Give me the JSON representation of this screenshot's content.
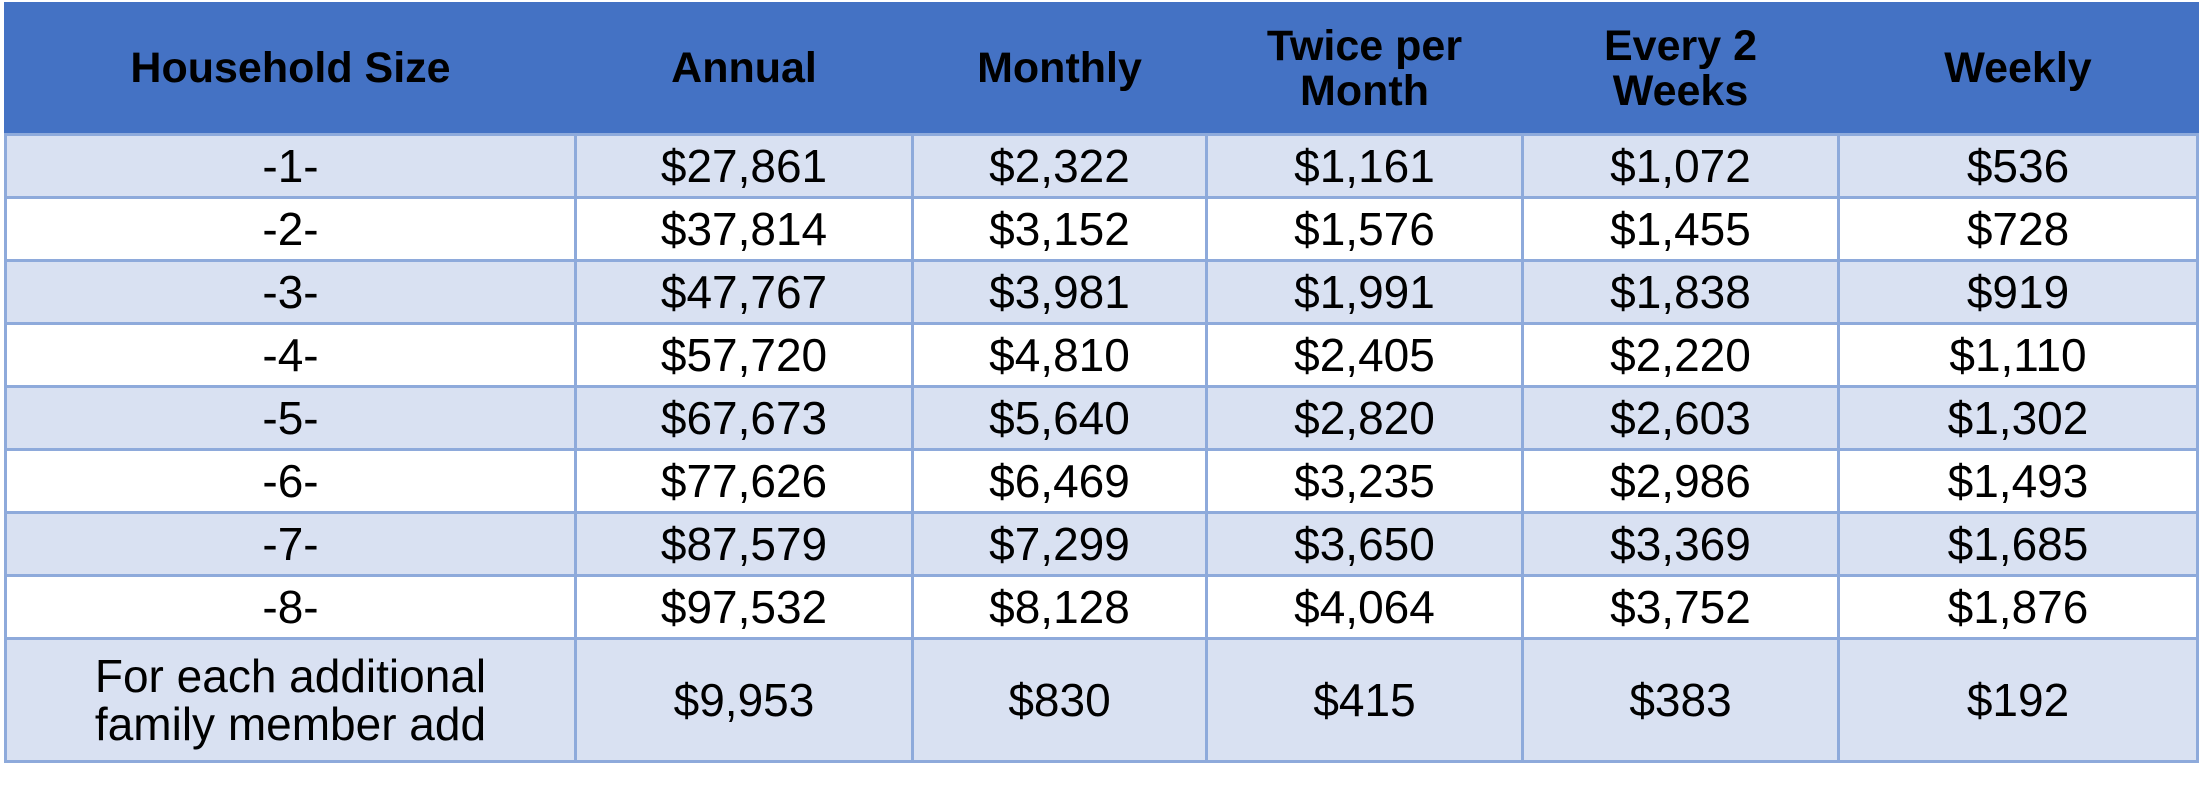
{
  "table": {
    "header": [
      "Household Size",
      "Annual",
      "Monthly",
      "Twice per Month",
      "Every 2 Weeks",
      "Weekly"
    ],
    "rows": [
      [
        "-1-",
        "$27,861",
        "$2,322",
        "$1,161",
        "$1,072",
        "$536"
      ],
      [
        "-2-",
        "$37,814",
        "$3,152",
        "$1,576",
        "$1,455",
        "$728"
      ],
      [
        "-3-",
        "$47,767",
        "$3,981",
        "$1,991",
        "$1,838",
        "$919"
      ],
      [
        "-4-",
        "$57,720",
        "$4,810",
        "$2,405",
        "$2,220",
        "$1,110"
      ],
      [
        "-5-",
        "$67,673",
        "$5,640",
        "$2,820",
        "$2,603",
        "$1,302"
      ],
      [
        "-6-",
        "$77,626",
        "$6,469",
        "$3,235",
        "$2,986",
        "$1,493"
      ],
      [
        "-7-",
        "$87,579",
        "$7,299",
        "$3,650",
        "$3,369",
        "$1,685"
      ],
      [
        "-8-",
        "$97,532",
        "$8,128",
        "$4,064",
        "$3,752",
        "$1,876"
      ],
      [
        "For each additional family member add",
        "$9,953",
        "$830",
        "$415",
        "$383",
        "$192"
      ]
    ]
  }
}
